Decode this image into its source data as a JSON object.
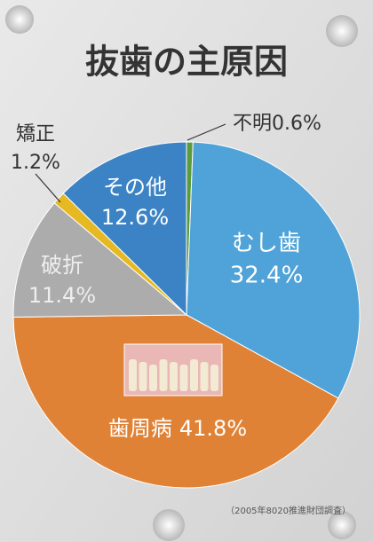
{
  "chart_data": {
    "type": "pie",
    "title": "抜歯の主原因",
    "source": "（2005年8020推進財団調査）",
    "categories": [
      "不明",
      "むし歯",
      "歯周病",
      "破折",
      "矯正",
      "その他"
    ],
    "values": [
      0.6,
      32.4,
      41.8,
      11.4,
      1.2,
      12.6
    ],
    "value_labels": [
      "0.6%",
      "32.4%",
      "41.8%",
      "11.4%",
      "1.2%",
      "12.6%"
    ],
    "colors": [
      "#5c9a3c",
      "#4fa3d8",
      "#e08236",
      "#acacac",
      "#e6b923",
      "#3b83c4"
    ]
  }
}
